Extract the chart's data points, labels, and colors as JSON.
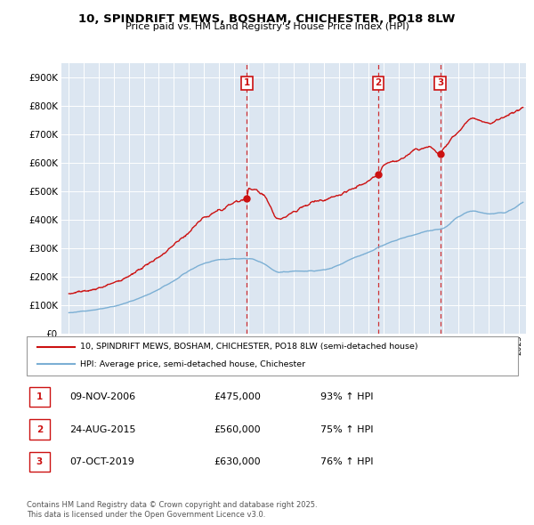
{
  "title": "10, SPINDRIFT MEWS, BOSHAM, CHICHESTER, PO18 8LW",
  "subtitle": "Price paid vs. HM Land Registry's House Price Index (HPI)",
  "legend_line1": "10, SPINDRIFT MEWS, BOSHAM, CHICHESTER, PO18 8LW (semi-detached house)",
  "legend_line2": "HPI: Average price, semi-detached house, Chichester",
  "footer_line1": "Contains HM Land Registry data © Crown copyright and database right 2025.",
  "footer_line2": "This data is licensed under the Open Government Licence v3.0.",
  "transactions": [
    {
      "num": "1",
      "date": "09-NOV-2006",
      "price": "£475,000",
      "hpi": "93% ↑ HPI",
      "year": 2006.87,
      "price_val": 475000
    },
    {
      "num": "2",
      "date": "24-AUG-2015",
      "price": "£560,000",
      "hpi": "75% ↑ HPI",
      "year": 2015.65,
      "price_val": 560000
    },
    {
      "num": "3",
      "date": "07-OCT-2019",
      "price": "£630,000",
      "hpi": "76% ↑ HPI",
      "year": 2019.77,
      "price_val": 630000
    }
  ],
  "hpi_color": "#7bafd4",
  "price_color": "#cc1111",
  "background_color": "#dce6f1",
  "ylim": [
    0,
    950000
  ],
  "yticks": [
    0,
    100000,
    200000,
    300000,
    400000,
    500000,
    600000,
    700000,
    800000,
    900000
  ],
  "xlim_start": 1994.5,
  "xlim_end": 2025.5
}
